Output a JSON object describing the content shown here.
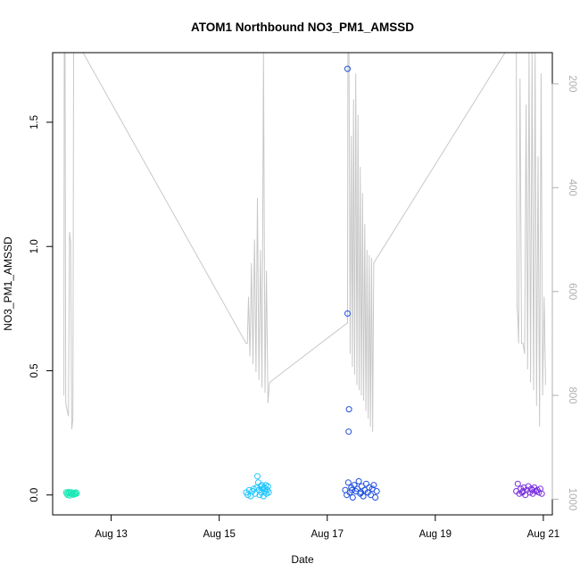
{
  "chart_data": {
    "type": "scatter",
    "title": "ATOM1 Northbound NO3_PM1_AMSSD",
    "xlabel": "Date",
    "ylabel": "NO3_PM1_AMSSD",
    "x_is_date": true,
    "xlim": [
      "2016-08-11T22:00",
      "2016-08-21T04:00"
    ],
    "ylim": [
      -0.08,
      1.78
    ],
    "x_ticks": [
      {
        "value": "2016-08-13T00:00",
        "label": "Aug 13"
      },
      {
        "value": "2016-08-15T00:00",
        "label": "Aug 15"
      },
      {
        "value": "2016-08-17T00:00",
        "label": "Aug 17"
      },
      {
        "value": "2016-08-19T00:00",
        "label": "Aug 19"
      },
      {
        "value": "2016-08-21T00:00",
        "label": "Aug 21"
      }
    ],
    "y_ticks": [
      {
        "value": 0.0,
        "label": "0.0"
      },
      {
        "value": 0.5,
        "label": "0.5"
      },
      {
        "value": 1.0,
        "label": "1.0"
      },
      {
        "value": 1.5,
        "label": "1.5"
      }
    ],
    "y2_reversed": true,
    "y2lim": [
      1030,
      140
    ],
    "y2_ticks": [
      {
        "value": 200,
        "label": "200"
      },
      {
        "value": 400,
        "label": "400"
      },
      {
        "value": 600,
        "label": "600"
      },
      {
        "value": 800,
        "label": "800"
      },
      {
        "value": 1000,
        "label": "1000"
      }
    ],
    "grid": false,
    "legend": "none",
    "secondary_line_color": "#c8c8c8",
    "series": [
      {
        "color": "#1de9b6",
        "points": [
          [
            "2016-08-12T04:00",
            0.01
          ],
          [
            "2016-08-12T04:20",
            0.005
          ],
          [
            "2016-08-12T04:40",
            0.0
          ],
          [
            "2016-08-12T05:00",
            0.012
          ],
          [
            "2016-08-12T05:20",
            0.008
          ],
          [
            "2016-08-12T05:40",
            -0.002
          ],
          [
            "2016-08-12T06:00",
            0.006
          ],
          [
            "2016-08-12T06:20",
            0.011
          ],
          [
            "2016-08-12T06:40",
            0.003
          ],
          [
            "2016-08-12T07:00",
            0.009
          ],
          [
            "2016-08-12T07:20",
            0.001
          ],
          [
            "2016-08-12T07:40",
            0.007
          ],
          [
            "2016-08-12T08:00",
            0.004
          ],
          [
            "2016-08-12T08:20",
            0.01
          ],
          [
            "2016-08-12T08:40",
            0.006
          ]
        ]
      },
      {
        "color": "#1ec5ff",
        "points": [
          [
            "2016-08-15T12:00",
            0.01
          ],
          [
            "2016-08-15T12:40",
            0.0
          ],
          [
            "2016-08-15T13:20",
            0.02
          ],
          [
            "2016-08-15T14:00",
            -0.005
          ],
          [
            "2016-08-15T14:40",
            0.015
          ],
          [
            "2016-08-15T15:20",
            0.025
          ],
          [
            "2016-08-15T16:00",
            0.005
          ],
          [
            "2016-08-15T16:40",
            0.03
          ],
          [
            "2016-08-15T17:00",
            0.075
          ],
          [
            "2016-08-15T17:20",
            0.05
          ],
          [
            "2016-08-15T17:40",
            0.02
          ],
          [
            "2016-08-15T18:00",
            0.0
          ],
          [
            "2016-08-15T18:20",
            0.035
          ],
          [
            "2016-08-15T18:40",
            0.01
          ],
          [
            "2016-08-15T19:00",
            0.04
          ],
          [
            "2016-08-15T19:20",
            0.025
          ],
          [
            "2016-08-15T19:40",
            -0.005
          ],
          [
            "2016-08-15T20:00",
            0.03
          ],
          [
            "2016-08-15T20:20",
            0.015
          ],
          [
            "2016-08-15T20:40",
            0.04
          ],
          [
            "2016-08-15T21:00",
            0.005
          ],
          [
            "2016-08-15T21:20",
            0.02
          ],
          [
            "2016-08-15T21:40",
            0.035
          ],
          [
            "2016-08-15T22:00",
            0.01
          ]
        ]
      },
      {
        "color": "#1f4fe0",
        "points": [
          [
            "2016-08-17T09:00",
            1.715
          ],
          [
            "2016-08-17T09:00",
            0.73
          ],
          [
            "2016-08-17T09:40",
            0.345
          ],
          [
            "2016-08-17T09:30",
            0.255
          ],
          [
            "2016-08-17T08:00",
            0.02
          ],
          [
            "2016-08-17T08:40",
            0.0
          ],
          [
            "2016-08-17T09:20",
            0.05
          ],
          [
            "2016-08-17T10:00",
            0.01
          ],
          [
            "2016-08-17T10:40",
            0.03
          ],
          [
            "2016-08-17T11:20",
            -0.01
          ],
          [
            "2016-08-17T12:00",
            0.04
          ],
          [
            "2016-08-17T12:40",
            0.015
          ],
          [
            "2016-08-17T13:20",
            0.025
          ],
          [
            "2016-08-17T14:00",
            0.055
          ],
          [
            "2016-08-17T14:40",
            0.005
          ],
          [
            "2016-08-17T15:20",
            0.035
          ],
          [
            "2016-08-17T16:00",
            -0.005
          ],
          [
            "2016-08-17T16:40",
            0.02
          ],
          [
            "2016-08-17T17:20",
            0.045
          ],
          [
            "2016-08-17T18:00",
            0.01
          ],
          [
            "2016-08-17T18:40",
            0.03
          ],
          [
            "2016-08-17T19:20",
            0.0
          ],
          [
            "2016-08-17T20:00",
            0.025
          ],
          [
            "2016-08-17T20:40",
            0.04
          ],
          [
            "2016-08-17T21:20",
            -0.01
          ],
          [
            "2016-08-17T22:00",
            0.015
          ],
          [
            "2016-08-17T11:00",
            0.02
          ],
          [
            "2016-08-17T15:00",
            0.01
          ]
        ]
      },
      {
        "color": "#7a2fe0",
        "points": [
          [
            "2016-08-20T12:00",
            0.015
          ],
          [
            "2016-08-20T12:40",
            0.045
          ],
          [
            "2016-08-20T13:20",
            0.005
          ],
          [
            "2016-08-20T14:00",
            0.025
          ],
          [
            "2016-08-20T14:40",
            0.01
          ],
          [
            "2016-08-20T15:20",
            0.03
          ],
          [
            "2016-08-20T16:00",
            0.0
          ],
          [
            "2016-08-20T16:40",
            0.02
          ],
          [
            "2016-08-20T17:20",
            0.035
          ],
          [
            "2016-08-20T18:00",
            0.01
          ],
          [
            "2016-08-20T18:40",
            0.025
          ],
          [
            "2016-08-20T19:20",
            0.005
          ],
          [
            "2016-08-20T20:00",
            0.03
          ],
          [
            "2016-08-20T20:40",
            0.015
          ],
          [
            "2016-08-20T21:20",
            0.02
          ],
          [
            "2016-08-20T22:00",
            0.01
          ],
          [
            "2016-08-20T22:40",
            0.025
          ],
          [
            "2016-08-20T23:20",
            0.005
          ],
          [
            "2016-08-20T15:00",
            0.015
          ],
          [
            "2016-08-20T19:00",
            0.02
          ]
        ]
      }
    ],
    "secondary_line": [
      [
        "2016-08-12T03:00",
        800
      ],
      [
        "2016-08-12T03:10",
        140
      ],
      [
        "2016-08-12T03:30",
        140
      ],
      [
        "2016-08-12T03:50",
        815
      ],
      [
        "2016-08-12T04:30",
        830
      ],
      [
        "2016-08-12T05:00",
        840
      ],
      [
        "2016-08-12T05:30",
        485
      ],
      [
        "2016-08-12T06:00",
        505
      ],
      [
        "2016-08-12T06:30",
        865
      ],
      [
        "2016-08-12T07:00",
        845
      ],
      [
        "2016-08-12T07:20",
        140
      ],
      [
        "2016-08-12T08:40",
        140
      ],
      [
        "2016-08-12T11:30",
        140
      ],
      [
        "2016-08-15T12:00",
        700
      ],
      [
        "2016-08-15T12:30",
        700
      ],
      [
        "2016-08-15T13:00",
        610
      ],
      [
        "2016-08-15T13:40",
        725
      ],
      [
        "2016-08-15T14:20",
        545
      ],
      [
        "2016-08-15T15:00",
        740
      ],
      [
        "2016-08-15T15:40",
        500
      ],
      [
        "2016-08-15T16:20",
        755
      ],
      [
        "2016-08-15T17:00",
        420
      ],
      [
        "2016-08-15T17:40",
        770
      ],
      [
        "2016-08-15T18:20",
        520
      ],
      [
        "2016-08-15T19:00",
        785
      ],
      [
        "2016-08-15T19:40",
        140
      ],
      [
        "2016-08-15T20:20",
        795
      ],
      [
        "2016-08-15T21:00",
        560
      ],
      [
        "2016-08-15T21:40",
        815
      ],
      [
        "2016-08-15T22:20",
        775
      ],
      [
        "2016-08-17T09:00",
        660
      ],
      [
        "2016-08-17T09:10",
        140
      ],
      [
        "2016-08-17T09:40",
        140
      ],
      [
        "2016-08-17T10:10",
        720
      ],
      [
        "2016-08-17T10:40",
        300
      ],
      [
        "2016-08-17T11:10",
        745
      ],
      [
        "2016-08-17T11:40",
        230
      ],
      [
        "2016-08-17T12:10",
        760
      ],
      [
        "2016-08-17T12:40",
        180
      ],
      [
        "2016-08-17T13:10",
        780
      ],
      [
        "2016-08-17T13:40",
        260
      ],
      [
        "2016-08-17T14:10",
        790
      ],
      [
        "2016-08-17T14:40",
        360
      ],
      [
        "2016-08-17T15:10",
        800
      ],
      [
        "2016-08-17T15:40",
        410
      ],
      [
        "2016-08-17T16:10",
        810
      ],
      [
        "2016-08-17T16:40",
        470
      ],
      [
        "2016-08-17T17:10",
        830
      ],
      [
        "2016-08-17T17:40",
        520
      ],
      [
        "2016-08-17T18:10",
        845
      ],
      [
        "2016-08-17T18:40",
        530
      ],
      [
        "2016-08-17T19:10",
        860
      ],
      [
        "2016-08-17T19:40",
        535
      ],
      [
        "2016-08-17T20:10",
        870
      ],
      [
        "2016-08-17T20:40",
        545
      ],
      [
        "2016-08-20T07:00",
        140
      ],
      [
        "2016-08-20T12:00",
        140
      ],
      [
        "2016-08-20T12:20",
        630
      ],
      [
        "2016-08-20T12:40",
        650
      ],
      [
        "2016-08-20T13:00",
        700
      ],
      [
        "2016-08-20T13:40",
        190
      ],
      [
        "2016-08-20T14:20",
        700
      ],
      [
        "2016-08-20T15:00",
        700
      ],
      [
        "2016-08-20T15:40",
        720
      ],
      [
        "2016-08-20T16:20",
        240
      ],
      [
        "2016-08-20T17:00",
        750
      ],
      [
        "2016-08-20T17:40",
        140
      ],
      [
        "2016-08-20T18:20",
        775
      ],
      [
        "2016-08-20T19:00",
        140
      ],
      [
        "2016-08-20T19:40",
        790
      ],
      [
        "2016-08-20T20:20",
        140
      ],
      [
        "2016-08-20T21:00",
        820
      ],
      [
        "2016-08-20T21:40",
        340
      ],
      [
        "2016-08-20T22:20",
        860
      ],
      [
        "2016-08-20T23:00",
        180
      ],
      [
        "2016-08-20T23:40",
        800
      ],
      [
        "2016-08-21T00:20",
        610
      ],
      [
        "2016-08-21T01:00",
        780
      ]
    ]
  }
}
